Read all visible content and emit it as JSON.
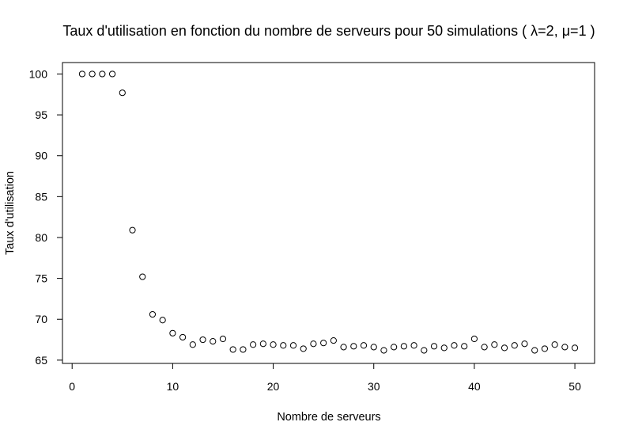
{
  "chart_data": {
    "type": "scatter",
    "title": "Taux d'utilisation en fonction du nombre de serveurs pour 50 simulations ( λ=2, μ=1 )",
    "xlabel": "Nombre de serveurs",
    "ylabel": "Taux d'utilisation",
    "xlim": [
      -0.96,
      51.96
    ],
    "ylim": [
      64.6,
      101.4
    ],
    "xticks": [
      0,
      10,
      20,
      30,
      40,
      50
    ],
    "yticks": [
      65,
      70,
      75,
      80,
      85,
      90,
      95,
      100
    ],
    "grid": false,
    "marker": "open-circle",
    "marker_color": "#000000",
    "series": [
      {
        "x": [
          1,
          2,
          3,
          4,
          5,
          6,
          7,
          8,
          9,
          10,
          11,
          12,
          13,
          14,
          15,
          16,
          17,
          18,
          19,
          20,
          21,
          22,
          23,
          24,
          25,
          26,
          27,
          28,
          29,
          30,
          31,
          32,
          33,
          34,
          35,
          36,
          37,
          38,
          39,
          40,
          41,
          42,
          43,
          44,
          45,
          46,
          47,
          48,
          49,
          50
        ],
        "y": [
          100.0,
          100.0,
          100.0,
          100.0,
          97.7,
          80.9,
          75.2,
          70.6,
          69.9,
          68.3,
          67.8,
          66.9,
          67.5,
          67.3,
          67.6,
          66.3,
          66.3,
          66.9,
          67.0,
          66.9,
          66.8,
          66.8,
          66.4,
          67.0,
          67.1,
          67.4,
          66.6,
          66.7,
          66.8,
          66.6,
          66.2,
          66.6,
          66.7,
          66.8,
          66.2,
          66.7,
          66.5,
          66.8,
          66.7,
          67.6,
          66.6,
          66.9,
          66.5,
          66.8,
          67.0,
          66.2,
          66.4,
          66.9,
          66.6,
          66.5
        ]
      }
    ]
  }
}
